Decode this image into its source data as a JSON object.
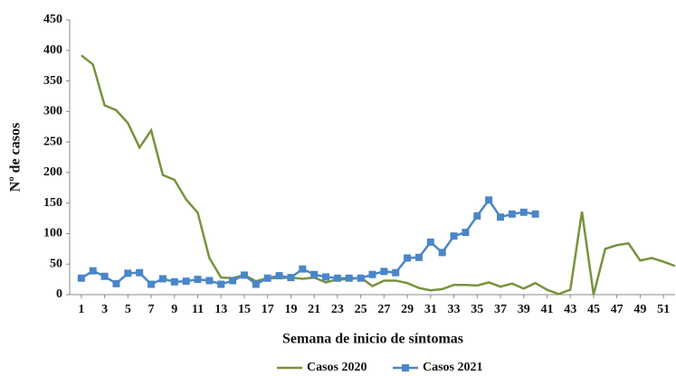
{
  "chart_data": {
    "type": "line",
    "x_label": "Semana de inicio de síntomas",
    "y_label": "Nº de casos",
    "x": [
      1,
      2,
      3,
      4,
      5,
      6,
      7,
      8,
      9,
      10,
      11,
      12,
      13,
      14,
      15,
      16,
      17,
      18,
      19,
      20,
      21,
      22,
      23,
      24,
      25,
      26,
      27,
      28,
      29,
      30,
      31,
      32,
      33,
      34,
      35,
      36,
      37,
      38,
      39,
      40,
      41,
      42,
      43,
      44,
      45,
      46,
      47,
      48,
      49,
      50,
      51,
      52
    ],
    "series": [
      {
        "name": "Casos 2020",
        "color": "#77933c",
        "marker": false,
        "values": [
          392,
          377,
          310,
          302,
          281,
          241,
          269,
          196,
          188,
          156,
          134,
          60,
          28,
          27,
          32,
          22,
          27,
          27,
          28,
          26,
          28,
          20,
          25,
          25,
          28,
          14,
          23,
          23,
          19,
          11,
          7,
          9,
          16,
          16,
          15,
          20,
          13,
          18,
          10,
          19,
          8,
          1,
          8,
          136,
          0,
          75,
          81,
          84,
          56,
          60,
          54,
          47
        ]
      },
      {
        "name": "Casos 2021",
        "color": "#4a86c8",
        "marker": true,
        "values": [
          27,
          39,
          30,
          18,
          35,
          36,
          17,
          26,
          21,
          22,
          25,
          23,
          17,
          23,
          32,
          17,
          27,
          31,
          28,
          42,
          33,
          29,
          27,
          27,
          27,
          33,
          38,
          36,
          60,
          61,
          86,
          69,
          96,
          102,
          129,
          155,
          127,
          132,
          135,
          132,
          null,
          null,
          null,
          null,
          null,
          null,
          null,
          null,
          null,
          null,
          null,
          null
        ]
      }
    ],
    "xlim": [
      0,
      52
    ],
    "xticks": [
      1,
      3,
      5,
      7,
      9,
      11,
      13,
      15,
      17,
      19,
      21,
      23,
      25,
      27,
      29,
      31,
      33,
      35,
      37,
      39,
      41,
      43,
      45,
      47,
      49,
      51
    ],
    "ylim": [
      0,
      450
    ],
    "yticks": [
      0,
      50,
      100,
      150,
      200,
      250,
      300,
      350,
      400,
      450
    ],
    "grid": false,
    "legend": "bottom"
  }
}
